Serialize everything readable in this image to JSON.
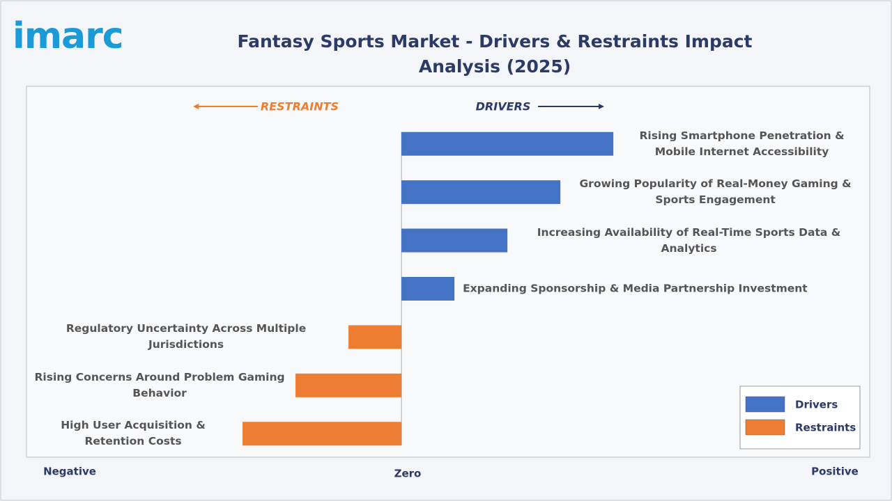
{
  "logo": "imarc",
  "chart_data": {
    "type": "diverging-bar",
    "title": "Fantasy Sports Market - Drivers & Restraints Impact Analysis (2025)",
    "annotations": {
      "restraints": "RESTRAINTS",
      "drivers": "DRIVERS"
    },
    "axis_labels": {
      "negative": "Negative",
      "zero": "Zero",
      "positive": "Positive"
    },
    "categories": [
      "Rising Smartphone Penetration & Mobile Internet Accessibility",
      "Growing Popularity of Real-Money Gaming & Sports Engagement",
      "Increasing Availability of Real-Time Sports Data & Analytics",
      "Expanding Sponsorship & Media Partnership Investment",
      "Regulatory Uncertainty Across Multiple Jurisdictions",
      "Rising Concerns Around Problem Gaming Behavior",
      "High User Acquisition & Retention Costs"
    ],
    "series": [
      {
        "name": "Drivers",
        "color": "#4472c4",
        "values": [
          4,
          3,
          2,
          1,
          null,
          null,
          null
        ]
      },
      {
        "name": "Restraints",
        "color": "#ed7d31",
        "values": [
          null,
          null,
          null,
          null,
          -1,
          -2,
          -3
        ]
      }
    ],
    "xlim": [
      -7,
      8.8
    ],
    "legend": "lower right"
  }
}
